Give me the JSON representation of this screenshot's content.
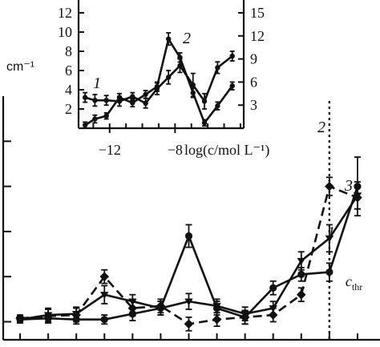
{
  "chart_data": [
    {
      "id": "main",
      "type": "line",
      "ylabel_unit": "cm⁻¹",
      "threshold_label_main": "c",
      "threshold_label_sub": "thr",
      "threshold_index": 11,
      "x": [
        0,
        1,
        2,
        3,
        4,
        5,
        6,
        7,
        8,
        9,
        10,
        11,
        12
      ],
      "series": [
        {
          "name": "1",
          "style": "solid",
          "marker": "triangle",
          "values": [
            0.1,
            0.3,
            0.35,
            1.2,
            0.9,
            0.6,
            0.9,
            0.7,
            0.35,
            0.6,
            2.7,
            3.7,
            5.6
          ],
          "errors": [
            0.15,
            0.3,
            0.3,
            0.4,
            0.3,
            0.3,
            0.35,
            0.3,
            0.3,
            0.3,
            0.4,
            0.6,
            0.6
          ]
        },
        {
          "name": "2",
          "style": "dashed",
          "marker": "diamond",
          "values": [
            0.15,
            0.25,
            0.3,
            2.0,
            0.6,
            0.7,
            -0.1,
            0.1,
            0.2,
            0.3,
            1.2,
            6.0,
            5.5
          ],
          "errors": [
            0.15,
            0.3,
            0.3,
            0.3,
            0.35,
            0.3,
            0.3,
            0.3,
            0.3,
            0.3,
            0.3,
            0.4,
            0.5
          ]
        },
        {
          "name": "3",
          "style": "solid",
          "marker": "circle",
          "values": [
            0.1,
            0.15,
            0.1,
            0.1,
            0.35,
            0.6,
            3.8,
            0.6,
            0.2,
            1.5,
            2.1,
            2.2,
            6.0
          ],
          "errors": [
            0.15,
            0.2,
            0.2,
            0.2,
            0.3,
            0.3,
            0.5,
            0.3,
            0.3,
            0.3,
            0.3,
            0.4,
            1.3
          ]
        }
      ],
      "xlim": [
        -0.6,
        12.8
      ],
      "ylim": [
        -0.8,
        10
      ],
      "y_ticks": [
        0,
        2,
        4,
        6,
        8
      ]
    },
    {
      "id": "inset",
      "type": "line",
      "xlabel": "log(c/mol L⁻¹)",
      "x_tick_labels": [
        "−12",
        "−8"
      ],
      "x_ticks": [
        -12,
        -8
      ],
      "y_left_tick_labels": [
        "2",
        "4",
        "6",
        "8",
        "10",
        "12"
      ],
      "y_left_ticks": [
        2,
        4,
        6,
        8,
        10,
        12
      ],
      "y_right_tick_labels": [
        "3",
        "6",
        "9",
        "12",
        "15"
      ],
      "y_right_ticks": [
        3,
        6,
        9,
        12,
        15
      ],
      "xlim": [
        -13.9,
        -3.8
      ],
      "ylim_left": [
        0,
        13
      ],
      "ylim_right": [
        0,
        16.25
      ],
      "series": [
        {
          "name": "1",
          "axis": "left",
          "values_x": [
            -13.5,
            -12.9,
            -12.2,
            -11.4,
            -10.6,
            -9.8,
            -9.1,
            -8.4,
            -7.7,
            -6.9,
            -6.2,
            -5.4,
            -4.5
          ],
          "values": [
            3.2,
            2.9,
            2.9,
            2.8,
            3.3,
            2.6,
            4.1,
            5.3,
            6.5,
            4.5,
            2.8,
            6.3,
            7.5
          ],
          "errors": [
            0.5,
            0.6,
            0.5,
            0.5,
            0.4,
            0.5,
            0.6,
            0.7,
            0.7,
            1.2,
            0.8,
            0.6,
            0.5
          ]
        },
        {
          "name": "2",
          "axis": "right",
          "values_x": [
            -13.5,
            -12.9,
            -12.2,
            -11.4,
            -10.6,
            -9.8,
            -9.1,
            -8.4,
            -7.7,
            -6.9,
            -6.2,
            -5.4,
            -4.5
          ],
          "values": [
            0.4,
            1.2,
            1.6,
            4.0,
            3.3,
            4.4,
            5.4,
            11.6,
            9.2,
            4.6,
            0.7,
            2.9,
            5.5
          ],
          "errors": [
            0.4,
            0.5,
            0.4,
            0.5,
            0.5,
            0.5,
            0.6,
            0.8,
            0.6,
            0.6,
            0.4,
            0.5,
            0.5
          ]
        }
      ]
    }
  ]
}
